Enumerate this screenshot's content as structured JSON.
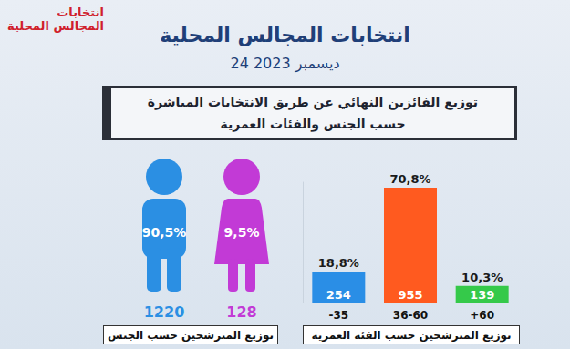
{
  "header": {
    "logo_text": [
      "انتخابات",
      "المجالس المحلية"
    ],
    "title": "انتخابات المجالس المحلية",
    "date": "24 ديسمبر 2023",
    "subtitle": [
      "توزيع الفائزين النهائي عن طريق الانتخابات المباشرة",
      "حسب الجنس والفئات العمرية"
    ]
  },
  "chart_data": [
    {
      "type": "pictogram",
      "title": "توزيع المترشحين حسب الجنس",
      "values": [
        1220,
        128
      ],
      "shares": [
        90.5,
        9.5
      ],
      "share_labels": [
        "90,5%",
        "9,5%"
      ],
      "colors": [
        "#2b8fe3",
        "#c23ad6"
      ],
      "data_labels": true
    },
    {
      "type": "bar",
      "title": "توزيع المترشحين حسب الفئة العمرية",
      "categories": [
        "-35",
        "36-60",
        "+60"
      ],
      "values": [
        254,
        955,
        139
      ],
      "shares": [
        18.8,
        70.8,
        10.3
      ],
      "share_labels": [
        "18,8%",
        "70,8%",
        "10,3%"
      ],
      "colors": [
        "#2a8ee6",
        "#ff5a1f",
        "#35c94a"
      ],
      "ylim": [
        0,
        1000
      ],
      "tick_labels": "x",
      "grid": false,
      "data_labels": true
    }
  ]
}
